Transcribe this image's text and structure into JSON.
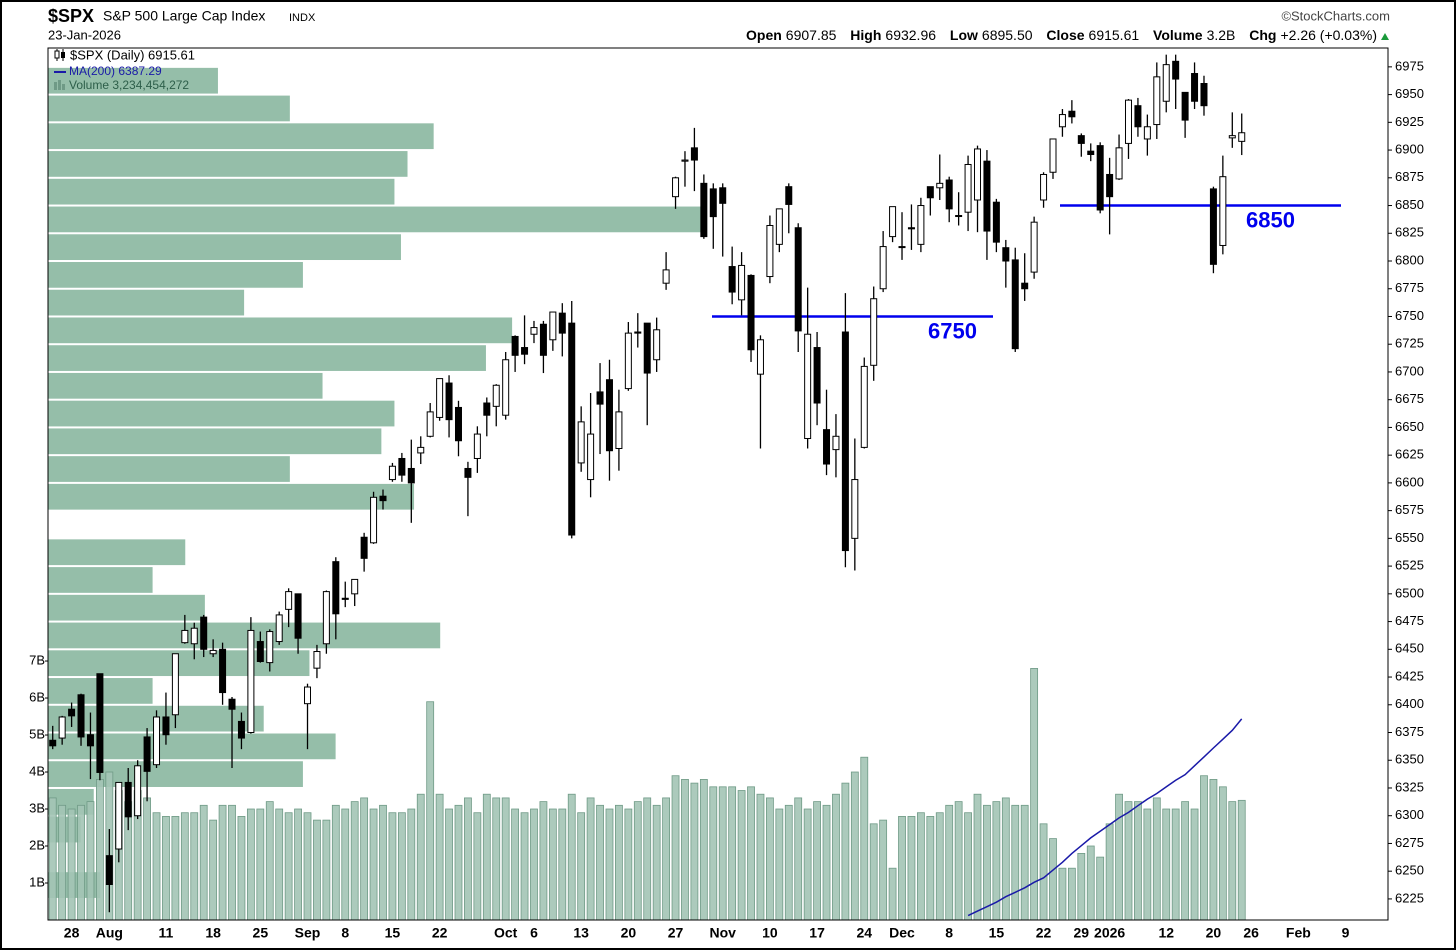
{
  "header": {
    "symbol": "$SPX",
    "name": "S&P 500 Large Cap Index",
    "exchange": "INDX",
    "date": "23-Jan-2026",
    "source": "©StockCharts.com",
    "quote": [
      {
        "label": "Open",
        "value": "6907.85"
      },
      {
        "label": "High",
        "value": "6932.96"
      },
      {
        "label": "Low",
        "value": "6895.50"
      },
      {
        "label": "Close",
        "value": "6915.61"
      },
      {
        "label": "Volume",
        "value": "3.2B"
      },
      {
        "label": "Chg",
        "value": "+2.26 (+0.03%)"
      }
    ]
  },
  "chart_data": {
    "type": "candlestick",
    "categories": [
      null,
      null,
      "28",
      null,
      null,
      null,
      "Aug",
      null,
      null,
      null,
      null,
      null,
      "11",
      null,
      null,
      null,
      null,
      "18",
      null,
      null,
      null,
      null,
      "25",
      null,
      null,
      null,
      null,
      "Sep",
      null,
      null,
      null,
      "8",
      null,
      null,
      null,
      null,
      "15",
      null,
      null,
      null,
      null,
      "22",
      null,
      null,
      null,
      null,
      null,
      null,
      "Oct",
      null,
      null,
      "6",
      null,
      null,
      null,
      null,
      "13",
      null,
      null,
      null,
      null,
      "20",
      null,
      null,
      null,
      null,
      "27",
      null,
      null,
      null,
      null,
      "Nov",
      null,
      null,
      null,
      null,
      "10",
      null,
      null,
      null,
      null,
      "17",
      null,
      null,
      null,
      null,
      "24",
      null,
      null,
      null,
      "Dec",
      null,
      null,
      null,
      null,
      "8",
      null,
      null,
      null,
      null,
      "15",
      null,
      null,
      null,
      null,
      "22",
      null,
      null,
      null,
      "29",
      null,
      null,
      "2026",
      null,
      null,
      null,
      null,
      null,
      "12",
      null,
      null,
      null,
      null,
      "20",
      null,
      null,
      null,
      "26",
      null,
      null,
      null,
      null,
      "Feb",
      null,
      null,
      null,
      null,
      "9",
      null,
      null,
      null,
      null
    ],
    "ylim": [
      6206,
      6992
    ],
    "yticks": [
      6225,
      6250,
      6275,
      6300,
      6325,
      6350,
      6375,
      6400,
      6425,
      6450,
      6475,
      6500,
      6525,
      6550,
      6575,
      6600,
      6625,
      6650,
      6675,
      6700,
      6725,
      6750,
      6775,
      6800,
      6825,
      6850,
      6875,
      6900,
      6925,
      6950,
      6975
    ],
    "series": [
      {
        "name": "$SPX (Daily) 6915.61",
        "color": "#000000",
        "open": [
          6368,
          6370,
          6396,
          6409,
          6373,
          6428,
          6264,
          6270,
          6330,
          6300,
          6371,
          6346,
          6389,
          6391,
          6456,
          6455,
          6479,
          6446,
          6450,
          6405,
          6385,
          6375,
          6457,
          6438,
          6457,
          6486,
          6500,
          6401,
          6433,
          6455,
          6529,
          6496,
          6500,
          6551,
          6546,
          6588,
          6603,
          6622,
          6613,
          6627,
          6642,
          6659,
          6690,
          6668,
          6613,
          6622,
          6672,
          6669,
          6661,
          6732,
          6722,
          6734,
          6743,
          6729,
          6753,
          6744,
          6618,
          6603,
          6682,
          6693,
          6631,
          6685,
          6736,
          6744,
          6711,
          6780,
          6858,
          6890,
          6902,
          6870,
          6865,
          6866,
          6795,
          6765,
          6787,
          6698,
          6786,
          6815,
          6867,
          6830,
          6640,
          6722,
          6648,
          6630,
          6736,
          6550,
          6632,
          6706,
          6775,
          6822,
          6813,
          6830,
          6815,
          6867,
          6866,
          6873,
          6841,
          6844,
          6855,
          6890,
          6853,
          6812,
          6801,
          6780,
          6790,
          6855,
          6880,
          6921,
          6935,
          6913,
          6899,
          6904,
          6878,
          6874,
          6906,
          6940,
          6910,
          6923,
          6944,
          6980,
          6952,
          6969,
          6960,
          6865,
          6814,
          6911,
          6907.85,
          null,
          null,
          null,
          null,
          null,
          null,
          null,
          null,
          null,
          null,
          null,
          null,
          null,
          null,
          null
        ],
        "high": [
          6381,
          6390,
          6402,
          6410,
          6393,
          6428,
          6288,
          6330,
          6343,
          6350,
          6379,
          6395,
          6411,
          6446,
          6481,
          6474,
          6481,
          6459,
          6456,
          6407,
          6393,
          6479,
          6466,
          6468,
          6484,
          6505,
          6500,
          6419,
          6454,
          6503,
          6533,
          6511,
          6513,
          6555,
          6592,
          6594,
          6618,
          6627,
          6639,
          6642,
          6672,
          6694,
          6697,
          6674,
          6619,
          6651,
          6677,
          6689,
          6718,
          6733,
          6751,
          6746,
          6746,
          6754,
          6762,
          6764,
          6669,
          6681,
          6708,
          6711,
          6684,
          6745,
          6753,
          6744,
          6749,
          6808,
          6876,
          6899,
          6920,
          6878,
          6870,
          6870,
          6813,
          6808,
          6788,
          6733,
          6841,
          6847,
          6870,
          6834,
          6776,
          6736,
          6684,
          6662,
          6771,
          6640,
          6713,
          6777,
          6827,
          6849,
          6844,
          6851,
          6857,
          6867,
          6896,
          6876,
          6862,
          6895,
          6904,
          6900,
          6856,
          6819,
          6812,
          6807,
          6840,
          6880,
          6910,
          6937,
          6945,
          6915,
          6906,
          6907,
          6893,
          6914,
          6946,
          6947,
          6932,
          6979,
          6986,
          6986,
          6952,
          6979,
          6967,
          6867,
          6895,
          6934,
          6932.96,
          null,
          null,
          null,
          null,
          null,
          null,
          null,
          null,
          null,
          null,
          null,
          null,
          null,
          null,
          null
        ],
        "low": [
          6360,
          6364,
          6380,
          6363,
          6333,
          6332,
          6213,
          6258,
          6287,
          6297,
          6313,
          6343,
          6364,
          6379,
          6455,
          6441,
          6443,
          6443,
          6400,
          6343,
          6360,
          6374,
          6438,
          6430,
          6454,
          6470,
          6446,
          6360,
          6424,
          6446,
          6459,
          6488,
          6489,
          6520,
          6545,
          6576,
          6601,
          6601,
          6564,
          6617,
          6641,
          6656,
          6641,
          6624,
          6570,
          6609,
          6642,
          6651,
          6657,
          6700,
          6707,
          6726,
          6699,
          6719,
          6714,
          6550,
          6610,
          6587,
          6626,
          6602,
          6611,
          6683,
          6722,
          6652,
          6700,
          6774,
          6847,
          6867,
          6863,
          6820,
          6811,
          6804,
          6761,
          6751,
          6709,
          6631,
          6780,
          6808,
          6825,
          6718,
          6631,
          6652,
          6607,
          6605,
          6524,
          6521,
          6631,
          6692,
          6772,
          6817,
          6801,
          6810,
          6808,
          6841,
          6855,
          6835,
          6832,
          6827,
          6826,
          6801,
          6808,
          6776,
          6718,
          6764,
          6784,
          6848,
          6874,
          6912,
          6924,
          6894,
          6890,
          6843,
          6824,
          6873,
          6892,
          6912,
          6895,
          6910,
          6934,
          6937,
          6911,
          6937,
          6931,
          6789,
          6806,
          6902,
          6895.5,
          null,
          null,
          null,
          null,
          null,
          null,
          null,
          null,
          null,
          null,
          null,
          null,
          null,
          null,
          null
        ],
        "close": [
          6363,
          6389,
          6390,
          6371,
          6363,
          6339,
          6238,
          6330,
          6299,
          6345,
          6340,
          6389,
          6373,
          6446,
          6467,
          6469,
          6450,
          6449,
          6411,
          6396,
          6370,
          6467,
          6439,
          6466,
          6481,
          6502,
          6460,
          6416,
          6448,
          6502,
          6482,
          6495,
          6513,
          6532,
          6587,
          6584,
          6615,
          6607,
          6600,
          6632,
          6664,
          6694,
          6657,
          6638,
          6605,
          6644,
          6661,
          6688,
          6711,
          6715,
          6716,
          6740,
          6715,
          6754,
          6735,
          6553,
          6655,
          6644,
          6671,
          6629,
          6664,
          6735,
          6735,
          6699,
          6738,
          6792,
          6875,
          6891,
          6891,
          6822,
          6840,
          6852,
          6772,
          6796,
          6720,
          6729,
          6832,
          6847,
          6851,
          6737,
          6734,
          6672,
          6617,
          6642,
          6539,
          6603,
          6705,
          6766,
          6813,
          6849,
          6813,
          6829,
          6850,
          6857,
          6870,
          6847,
          6841,
          6887,
          6901,
          6827,
          6817,
          6800,
          6721,
          6775,
          6835,
          6878,
          6910,
          6932,
          6930,
          6906,
          6896,
          6846,
          6858,
          6902,
          6945,
          6921,
          6921,
          6966,
          6977,
          6964,
          6927,
          6944,
          6940,
          6797,
          6876,
          6913,
          6915.61,
          null,
          null,
          null,
          null,
          null,
          null,
          null,
          null,
          null,
          null,
          null,
          null,
          null,
          null,
          null
        ]
      },
      {
        "name": "MA(200) 6387.29",
        "color": "#1a1aa8",
        "values": [
          null,
          null,
          null,
          null,
          null,
          null,
          null,
          null,
          null,
          null,
          null,
          null,
          null,
          null,
          null,
          null,
          null,
          null,
          null,
          null,
          null,
          null,
          null,
          null,
          null,
          null,
          null,
          null,
          null,
          null,
          null,
          null,
          null,
          null,
          null,
          null,
          null,
          null,
          null,
          null,
          null,
          null,
          null,
          null,
          null,
          null,
          null,
          null,
          null,
          null,
          null,
          null,
          null,
          null,
          null,
          null,
          null,
          null,
          null,
          null,
          null,
          null,
          null,
          null,
          null,
          null,
          null,
          null,
          null,
          null,
          null,
          null,
          null,
          null,
          null,
          null,
          null,
          null,
          null,
          null,
          null,
          null,
          null,
          null,
          null,
          null,
          null,
          null,
          null,
          null,
          null,
          null,
          null,
          null,
          null,
          null,
          null,
          6210,
          6214,
          6218,
          6222,
          6227,
          6231,
          6235,
          6240,
          6244,
          6251,
          6258,
          6266,
          6273,
          6280,
          6286,
          6292,
          6298,
          6303,
          6309,
          6315,
          6320,
          6326,
          6332,
          6337,
          6345,
          6353,
          6361,
          6369,
          6377,
          6387.29,
          null,
          null,
          null,
          null,
          null,
          null,
          null,
          null,
          null,
          null,
          null,
          null,
          null,
          null,
          null
        ]
      }
    ],
    "volume": {
      "name": "Volume 3,234,454,272",
      "color": "#a3c4b5",
      "ylim": [
        0,
        23.57
      ],
      "yticks": [
        {
          "value": 1,
          "label": "1B"
        },
        {
          "value": 2,
          "label": "2B"
        },
        {
          "value": 3,
          "label": "3B"
        },
        {
          "value": 4,
          "label": "4B"
        },
        {
          "value": 5,
          "label": "5B"
        },
        {
          "value": 6,
          "label": "6B"
        },
        {
          "value": 7,
          "label": "7B"
        }
      ],
      "values": [
        3.3,
        3.1,
        3.0,
        3.1,
        3.2,
        3.8,
        4.0,
        3.5,
        3.2,
        3.5,
        3.3,
        2.9,
        2.8,
        2.8,
        2.9,
        2.9,
        3.1,
        2.7,
        3.1,
        3.1,
        2.8,
        3.0,
        3.0,
        3.2,
        3.0,
        2.9,
        3.0,
        2.9,
        2.7,
        2.7,
        3.1,
        3.0,
        3.2,
        3.3,
        3.0,
        3.1,
        2.9,
        2.9,
        3.0,
        3.4,
        5.9,
        3.4,
        3.0,
        3.1,
        3.3,
        2.9,
        3.4,
        3.3,
        3.3,
        3.0,
        2.9,
        3.0,
        3.2,
        3.0,
        3.0,
        3.4,
        2.9,
        3.3,
        3.1,
        3.0,
        3.1,
        3.0,
        3.2,
        3.3,
        3.1,
        3.3,
        3.9,
        3.8,
        3.7,
        3.8,
        3.6,
        3.6,
        3.6,
        3.5,
        3.6,
        3.4,
        3.3,
        3.0,
        3.1,
        3.3,
        3.0,
        3.2,
        3.1,
        3.4,
        3.7,
        4.0,
        4.4,
        2.6,
        2.7,
        1.4,
        2.8,
        2.8,
        2.9,
        2.8,
        2.9,
        3.1,
        3.2,
        2.9,
        3.4,
        3.1,
        3.2,
        3.3,
        3.1,
        3.1,
        6.8,
        2.6,
        2.2,
        1.4,
        1.4,
        1.8,
        2.0,
        1.7,
        2.6,
        3.4,
        3.2,
        3.2,
        3.0,
        3.3,
        3.0,
        3.0,
        3.2,
        3.0,
        3.9,
        3.8,
        3.6,
        3.2,
        3.234454272,
        null,
        null,
        null,
        null,
        null,
        null,
        null,
        null,
        null,
        null,
        null,
        null,
        null,
        null,
        null
      ]
    },
    "volume_by_price": {
      "color": "#8fbaa4",
      "xlim": [
        0,
        205
      ],
      "bins": [
        6225,
        6250,
        6275,
        6300,
        6325,
        6350,
        6375,
        6400,
        6425,
        6450,
        6475,
        6500,
        6525,
        6550,
        6575,
        6600,
        6625,
        6650,
        6675,
        6700,
        6725,
        6750,
        6775,
        6800,
        6825,
        6850,
        6875,
        6900,
        6925,
        6950,
        6975
      ],
      "values": [
        8,
        0,
        5,
        7,
        39,
        44,
        33,
        16,
        40,
        60,
        24,
        16,
        21,
        0,
        56,
        37,
        51,
        53,
        42,
        67,
        71,
        30,
        39,
        54,
        100,
        53,
        55,
        59,
        37,
        26
      ]
    },
    "levels": [
      {
        "value": 6750,
        "color": "#0000ee"
      },
      {
        "value": 6850,
        "color": "#0000ee"
      }
    ]
  }
}
